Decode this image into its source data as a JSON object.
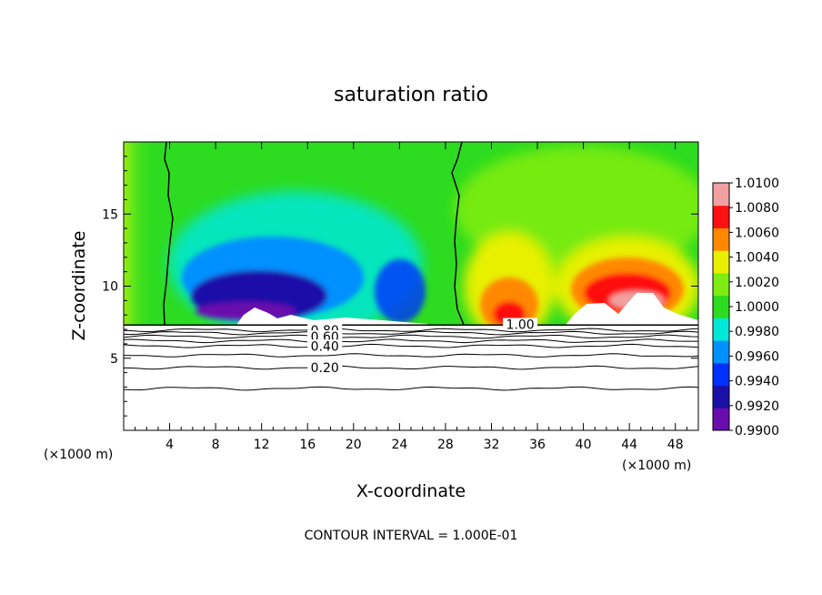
{
  "chart_data": {
    "type": "heatmap",
    "title": "saturation ratio",
    "xlabel": "X-coordinate",
    "ylabel": "Z-coordinate",
    "x_unit_left": "(×1000 m)",
    "x_unit_right": "(×1000 m)",
    "footer": "CONTOUR INTERVAL = 1.000E-01",
    "xlim": [
      0,
      50
    ],
    "ylim": [
      0,
      20
    ],
    "x_ticks": [
      4,
      8,
      12,
      16,
      20,
      24,
      28,
      32,
      36,
      40,
      44,
      48
    ],
    "y_ticks": [
      5,
      10,
      15
    ],
    "colorbar": {
      "min": 0.99,
      "max": 1.01,
      "labels": [
        "1.0100",
        "1.0080",
        "1.0060",
        "1.0040",
        "1.0020",
        "1.0000",
        "0.9980",
        "0.9960",
        "0.9940",
        "0.9920",
        "0.9900"
      ],
      "colors": [
        "#6a0dad",
        "#1a10a8",
        "#0030ff",
        "#0090ff",
        "#00e8d8",
        "#2ddc20",
        "#7eec10",
        "#e8f000",
        "#ff8800",
        "#ff1010",
        "#f0a0a0"
      ]
    },
    "surface_height_km": 7.3,
    "field_features": [
      {
        "kind": "dry",
        "x_center": 14,
        "z_center": 9.5,
        "x_extent": [
          6,
          26
        ],
        "min_value": 0.99
      },
      {
        "kind": "moist",
        "x_center": 34,
        "z_center": 9.0,
        "x_extent": [
          30,
          37
        ],
        "max_value": 1.0065
      },
      {
        "kind": "moist",
        "x_center": 43,
        "z_center": 10.5,
        "x_extent": [
          38.5,
          50
        ],
        "max_value": 1.0085
      }
    ],
    "contour_lines": [
      {
        "value": 1.0,
        "label": "1.00",
        "label_x": 34.5,
        "label_z": 7.35
      },
      {
        "value": 0.8,
        "label": "0.80",
        "label_x": 17.5,
        "label_z": 6.95
      },
      {
        "value": 0.7,
        "label": "",
        "label_x": null,
        "label_z": 6.75
      },
      {
        "value": 0.6,
        "label": "0.60",
        "label_x": 17.5,
        "label_z": 6.5
      },
      {
        "value": 0.5,
        "label": "",
        "label_x": null,
        "label_z": 6.2
      },
      {
        "value": 0.4,
        "label": "0.40",
        "label_x": 17.5,
        "label_z": 5.85
      },
      {
        "value": 0.3,
        "label": "",
        "label_x": null,
        "label_z": 5.2
      },
      {
        "value": 0.2,
        "label": "0.20",
        "label_x": 17.5,
        "label_z": 4.35
      },
      {
        "value": 0.1,
        "label": "",
        "label_x": null,
        "label_z": 2.9
      }
    ]
  }
}
